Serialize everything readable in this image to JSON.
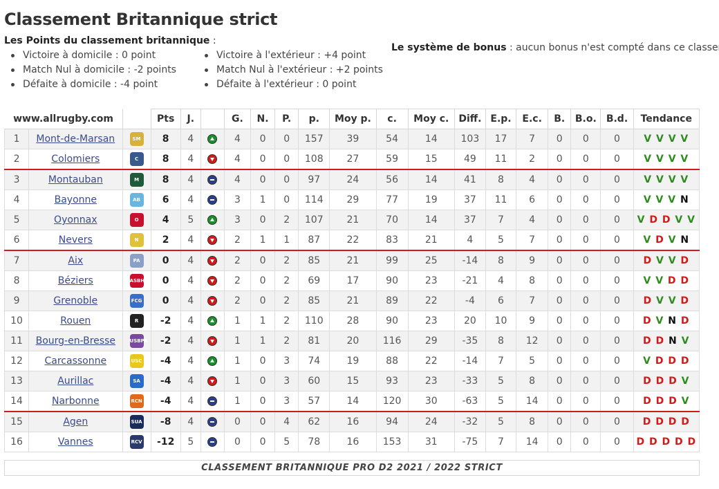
{
  "title": "Classement Britannique strict",
  "intro": {
    "bold": "Les Points du classement britannique",
    "suffix": " :"
  },
  "rules_left": [
    "Victoire à domicile : 0 point",
    "Match Nul à domicile : -2 points",
    "Défaite à domicile : -4 point"
  ],
  "rules_right": [
    "Victoire à l'extérieur : +4 point",
    "Match Nul à l'extérieur : +2 points",
    "Défaite à l'extérieur : 0 point"
  ],
  "bonus": {
    "bold": "Le système de bonus",
    "text": " : aucun bonus n'est compté dans ce classement."
  },
  "table": {
    "site": "www.allrugby.com",
    "headers": [
      "Pts",
      "J.",
      "",
      "G.",
      "N.",
      "P.",
      "p.",
      "Moy p.",
      "c.",
      "Moy c.",
      "Diff.",
      "E.p.",
      "E.c.",
      "B.",
      "B.o.",
      "B.d.",
      "Tendance"
    ],
    "rows": [
      {
        "rank": "1",
        "team": "Mont-de-Marsan",
        "logo_color": "#d7b23a",
        "logo_text": "SM",
        "pts": "8",
        "j": "4",
        "ha": "up",
        "g": "4",
        "n": "0",
        "p": "0",
        "pp": "157",
        "moyp": "39",
        "c": "54",
        "moyc": "14",
        "diff": "103",
        "ep": "17",
        "ec": "7",
        "b": "0",
        "bo": "0",
        "bd": "0",
        "trend": [
          "V",
          "V",
          "V",
          "V"
        ]
      },
      {
        "rank": "2",
        "team": "Colomiers",
        "logo_color": "#3a5a8c",
        "logo_text": "C",
        "pts": "8",
        "j": "4",
        "ha": "down",
        "g": "4",
        "n": "0",
        "p": "0",
        "pp": "108",
        "moyp": "27",
        "c": "59",
        "moyc": "15",
        "diff": "49",
        "ep": "11",
        "ec": "2",
        "b": "0",
        "bo": "0",
        "bd": "0",
        "trend": [
          "V",
          "V",
          "V",
          "V"
        ]
      },
      {
        "rank": "3",
        "team": "Montauban",
        "logo_color": "#1f5a3a",
        "logo_text": "M",
        "pts": "8",
        "j": "4",
        "ha": "eq",
        "g": "4",
        "n": "0",
        "p": "0",
        "pp": "97",
        "moyp": "24",
        "c": "56",
        "moyc": "14",
        "diff": "41",
        "ep": "8",
        "ec": "4",
        "b": "0",
        "bo": "0",
        "bd": "0",
        "trend": [
          "V",
          "V",
          "V",
          "V"
        ]
      },
      {
        "rank": "4",
        "team": "Bayonne",
        "logo_color": "#6ab4e0",
        "logo_text": "AB",
        "pts": "6",
        "j": "4",
        "ha": "eq",
        "g": "3",
        "n": "1",
        "p": "0",
        "pp": "114",
        "moyp": "29",
        "c": "77",
        "moyc": "19",
        "diff": "37",
        "ep": "11",
        "ec": "6",
        "b": "0",
        "bo": "0",
        "bd": "0",
        "trend": [
          "V",
          "V",
          "V",
          "N"
        ]
      },
      {
        "rank": "5",
        "team": "Oyonnax",
        "logo_color": "#c8102e",
        "logo_text": "O",
        "pts": "4",
        "j": "5",
        "ha": "up",
        "g": "3",
        "n": "0",
        "p": "2",
        "pp": "107",
        "moyp": "21",
        "c": "70",
        "moyc": "14",
        "diff": "37",
        "ep": "7",
        "ec": "4",
        "b": "0",
        "bo": "0",
        "bd": "0",
        "trend": [
          "V",
          "D",
          "D",
          "V",
          "V"
        ]
      },
      {
        "rank": "6",
        "team": "Nevers",
        "logo_color": "#e0c23a",
        "logo_text": "N",
        "pts": "2",
        "j": "4",
        "ha": "down",
        "g": "2",
        "n": "1",
        "p": "1",
        "pp": "87",
        "moyp": "22",
        "c": "83",
        "moyc": "21",
        "diff": "4",
        "ep": "5",
        "ec": "7",
        "b": "0",
        "bo": "0",
        "bd": "0",
        "trend": [
          "V",
          "D",
          "V",
          "N"
        ]
      },
      {
        "rank": "7",
        "team": "Aix",
        "logo_color": "#8aa0c8",
        "logo_text": "PA",
        "pts": "0",
        "j": "4",
        "ha": "down",
        "g": "2",
        "n": "0",
        "p": "2",
        "pp": "85",
        "moyp": "21",
        "c": "99",
        "moyc": "25",
        "diff": "-14",
        "ep": "8",
        "ec": "9",
        "b": "0",
        "bo": "0",
        "bd": "0",
        "trend": [
          "D",
          "V",
          "V",
          "D"
        ]
      },
      {
        "rank": "8",
        "team": "Béziers",
        "logo_color": "#c8102e",
        "logo_text": "ASBH",
        "pts": "0",
        "j": "4",
        "ha": "down",
        "g": "2",
        "n": "0",
        "p": "2",
        "pp": "69",
        "moyp": "17",
        "c": "90",
        "moyc": "23",
        "diff": "-21",
        "ep": "4",
        "ec": "8",
        "b": "0",
        "bo": "0",
        "bd": "0",
        "trend": [
          "V",
          "V",
          "D",
          "D"
        ]
      },
      {
        "rank": "9",
        "team": "Grenoble",
        "logo_color": "#3a6ec8",
        "logo_text": "FCG",
        "pts": "0",
        "j": "4",
        "ha": "down",
        "g": "2",
        "n": "0",
        "p": "2",
        "pp": "85",
        "moyp": "21",
        "c": "89",
        "moyc": "22",
        "diff": "-4",
        "ep": "6",
        "ec": "7",
        "b": "0",
        "bo": "0",
        "bd": "0",
        "trend": [
          "D",
          "V",
          "V",
          "D"
        ]
      },
      {
        "rank": "10",
        "team": "Rouen",
        "logo_color": "#222222",
        "logo_text": "R",
        "pts": "-2",
        "j": "4",
        "ha": "up",
        "g": "1",
        "n": "1",
        "p": "2",
        "pp": "110",
        "moyp": "28",
        "c": "90",
        "moyc": "23",
        "diff": "20",
        "ep": "10",
        "ec": "9",
        "b": "0",
        "bo": "0",
        "bd": "0",
        "trend": [
          "D",
          "V",
          "N",
          "D"
        ]
      },
      {
        "rank": "11",
        "team": "Bourg-en-Bresse",
        "logo_color": "#7a4aa0",
        "logo_text": "USBPA",
        "pts": "-2",
        "j": "4",
        "ha": "down",
        "g": "1",
        "n": "1",
        "p": "2",
        "pp": "81",
        "moyp": "20",
        "c": "116",
        "moyc": "29",
        "diff": "-35",
        "ep": "8",
        "ec": "12",
        "b": "0",
        "bo": "0",
        "bd": "0",
        "trend": [
          "D",
          "D",
          "N",
          "V"
        ]
      },
      {
        "rank": "12",
        "team": "Carcassonne",
        "logo_color": "#e8c81a",
        "logo_text": "USC",
        "pts": "-4",
        "j": "4",
        "ha": "up",
        "g": "1",
        "n": "0",
        "p": "3",
        "pp": "74",
        "moyp": "19",
        "c": "88",
        "moyc": "22",
        "diff": "-14",
        "ep": "7",
        "ec": "5",
        "b": "0",
        "bo": "0",
        "bd": "0",
        "trend": [
          "V",
          "D",
          "D",
          "D"
        ]
      },
      {
        "rank": "13",
        "team": "Aurillac",
        "logo_color": "#2a6ac8",
        "logo_text": "SA",
        "pts": "-4",
        "j": "4",
        "ha": "down",
        "g": "1",
        "n": "0",
        "p": "3",
        "pp": "60",
        "moyp": "15",
        "c": "93",
        "moyc": "23",
        "diff": "-33",
        "ep": "5",
        "ec": "8",
        "b": "0",
        "bo": "0",
        "bd": "0",
        "trend": [
          "D",
          "D",
          "D",
          "V"
        ]
      },
      {
        "rank": "14",
        "team": "Narbonne",
        "logo_color": "#e06a1a",
        "logo_text": "RCN",
        "pts": "-4",
        "j": "4",
        "ha": "eq",
        "g": "1",
        "n": "0",
        "p": "3",
        "pp": "57",
        "moyp": "14",
        "c": "120",
        "moyc": "30",
        "diff": "-63",
        "ep": "5",
        "ec": "14",
        "b": "0",
        "bo": "0",
        "bd": "0",
        "trend": [
          "D",
          "D",
          "D",
          "V"
        ]
      },
      {
        "rank": "15",
        "team": "Agen",
        "logo_color": "#1a2a5a",
        "logo_text": "SUA",
        "pts": "-8",
        "j": "4",
        "ha": "eq",
        "g": "0",
        "n": "0",
        "p": "4",
        "pp": "62",
        "moyp": "16",
        "c": "94",
        "moyc": "24",
        "diff": "-32",
        "ep": "5",
        "ec": "8",
        "b": "0",
        "bo": "0",
        "bd": "0",
        "trend": [
          "D",
          "D",
          "D",
          "D"
        ]
      },
      {
        "rank": "16",
        "team": "Vannes",
        "logo_color": "#2a3a6a",
        "logo_text": "RCV",
        "pts": "-12",
        "j": "5",
        "ha": "eq",
        "g": "0",
        "n": "0",
        "p": "5",
        "pp": "78",
        "moyp": "16",
        "c": "153",
        "moyc": "31",
        "diff": "-75",
        "ep": "7",
        "ec": "14",
        "b": "0",
        "bo": "0",
        "bd": "0",
        "trend": [
          "D",
          "D",
          "D",
          "D",
          "D"
        ]
      }
    ],
    "separators_after": [
      "2",
      "6",
      "14"
    ]
  },
  "footer": "CLASSEMENT BRITANNIQUE PRO D2 2021 / 2022 STRICT",
  "colors": {
    "win": "#2e8b1e",
    "loss": "#d11a1a",
    "separator": "#d11a1a",
    "link": "#3b4b8c"
  }
}
